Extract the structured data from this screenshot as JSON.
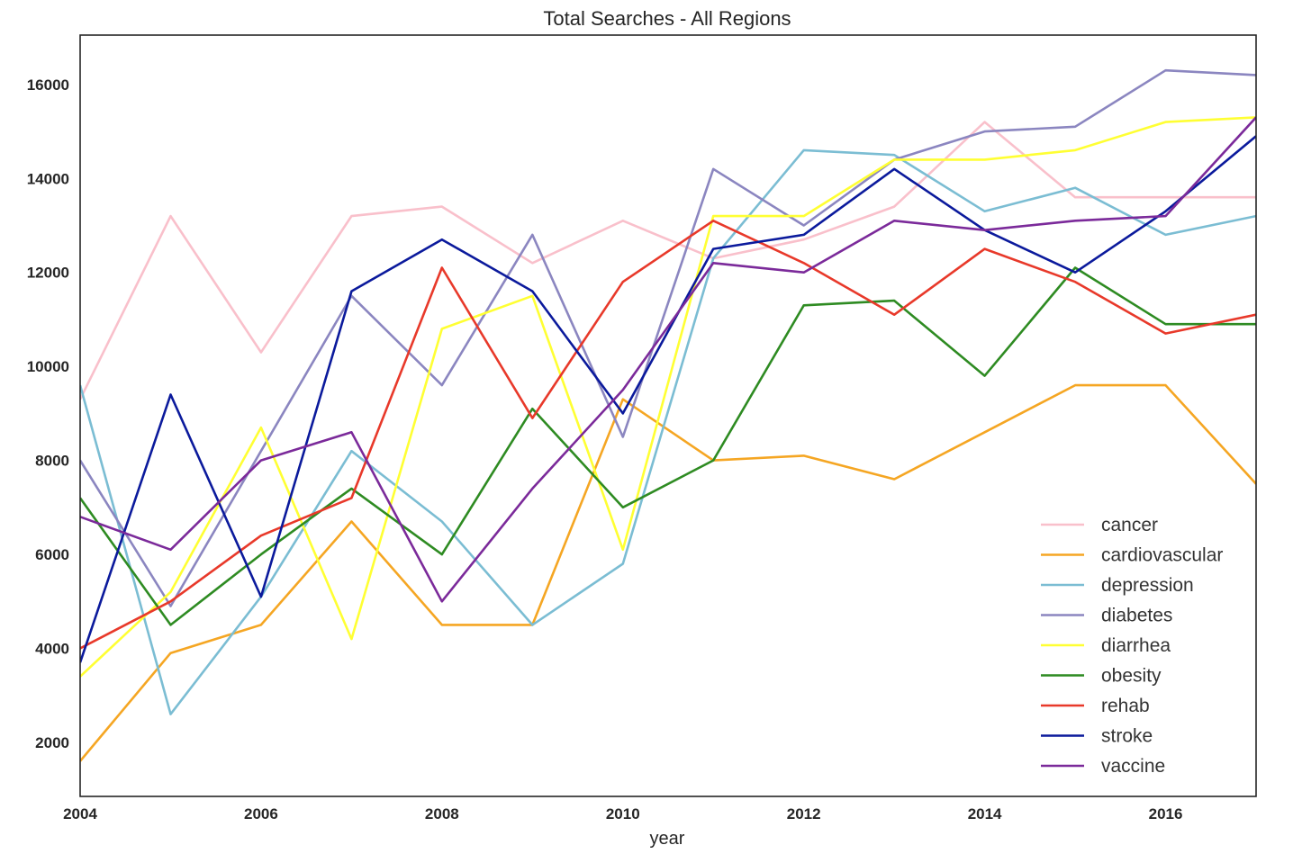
{
  "chart_data": {
    "type": "line",
    "title": "Total Searches - All Regions",
    "xlabel": "year",
    "ylabel": "",
    "xlim": [
      2004,
      2017
    ],
    "ylim": [
      850,
      17050
    ],
    "xticks": [
      2004,
      2006,
      2008,
      2010,
      2012,
      2014,
      2016
    ],
    "yticks": [
      2000,
      4000,
      6000,
      8000,
      10000,
      12000,
      14000,
      16000
    ],
    "grid": false,
    "legend_position": "lower-right",
    "x": [
      2004,
      2005,
      2006,
      2007,
      2008,
      2009,
      2010,
      2011,
      2012,
      2013,
      2014,
      2015,
      2016,
      2017
    ],
    "series": [
      {
        "name": "cancer",
        "color": "#f9c0cb",
        "values": [
          9300,
          13200,
          10300,
          13200,
          13400,
          12200,
          13100,
          12300,
          12700,
          13400,
          15200,
          13600,
          13600,
          13600
        ]
      },
      {
        "name": "cardiovascular",
        "color": "#f5a623",
        "values": [
          1600,
          3900,
          4500,
          6700,
          4500,
          4500,
          9300,
          8000,
          8100,
          7600,
          8600,
          9600,
          9600,
          7500
        ]
      },
      {
        "name": "depression",
        "color": "#7bbdd3",
        "values": [
          9600,
          2600,
          5100,
          8200,
          6700,
          4500,
          5800,
          12300,
          14600,
          14500,
          13300,
          13800,
          12800,
          13200
        ]
      },
      {
        "name": "diabetes",
        "color": "#8b86c0",
        "values": [
          8000,
          4900,
          8200,
          11500,
          9600,
          12800,
          8500,
          14200,
          13000,
          14400,
          15000,
          15100,
          16300,
          16200
        ]
      },
      {
        "name": "diarrhea",
        "color": "#ffff33",
        "values": [
          3400,
          5200,
          8700,
          4200,
          10800,
          11500,
          6100,
          13200,
          13200,
          14400,
          14400,
          14600,
          15200,
          15300
        ]
      },
      {
        "name": "obesity",
        "color": "#2e8b22",
        "values": [
          7200,
          4500,
          6000,
          7400,
          6000,
          9100,
          7000,
          8000,
          11300,
          11400,
          9800,
          12100,
          10900,
          10900
        ]
      },
      {
        "name": "rehab",
        "color": "#e8392a",
        "values": [
          4000,
          5000,
          6400,
          7200,
          12100,
          8900,
          11800,
          13100,
          12200,
          11100,
          12500,
          11800,
          10700,
          11100
        ]
      },
      {
        "name": "stroke",
        "color": "#0b1a9c",
        "values": [
          3700,
          9400,
          5100,
          11600,
          12700,
          11600,
          9000,
          12500,
          12800,
          14200,
          12900,
          12000,
          13300,
          14900
        ]
      },
      {
        "name": "vaccine",
        "color": "#7b2a9a",
        "values": [
          6800,
          6100,
          8000,
          8600,
          5000,
          7400,
          9500,
          12200,
          12000,
          13100,
          12900,
          13100,
          13200,
          15300
        ]
      }
    ]
  }
}
